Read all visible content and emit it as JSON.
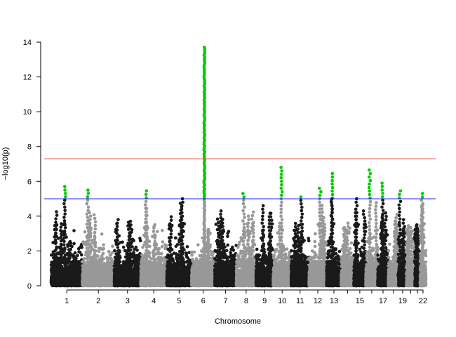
{
  "chart_data": {
    "type": "scatter",
    "subtype": "manhattan",
    "title": "",
    "xlabel": "Chromosome",
    "ylabel": "−log10(p)",
    "ylim": [
      0,
      14
    ],
    "y_ticks": [
      0,
      2,
      4,
      6,
      8,
      10,
      12,
      14
    ],
    "x_tick_labels": [
      "1",
      "2",
      "3",
      "4",
      "5",
      "6",
      "7",
      "8",
      "9",
      "10",
      "11",
      "12",
      "13",
      "15",
      "17",
      "19",
      "22"
    ],
    "chromosomes": [
      {
        "chr": "1",
        "span": 9.4,
        "color": "#1a1a1a",
        "max": 5.7
      },
      {
        "chr": "2",
        "span": 9.6,
        "color": "#989898",
        "max": 5.5
      },
      {
        "chr": "3",
        "span": 8.0,
        "color": "#1a1a1a",
        "max": 3.8
      },
      {
        "chr": "4",
        "span": 7.8,
        "color": "#989898",
        "max": 5.45
      },
      {
        "chr": "5",
        "span": 7.5,
        "color": "#1a1a1a",
        "max": 5.0
      },
      {
        "chr": "6",
        "span": 7.0,
        "color": "#989898",
        "max": 13.7
      },
      {
        "chr": "7",
        "span": 6.5,
        "color": "#1a1a1a",
        "max": 4.3
      },
      {
        "chr": "8",
        "span": 5.9,
        "color": "#989898",
        "max": 5.3
      },
      {
        "chr": "9",
        "span": 5.2,
        "color": "#1a1a1a",
        "max": 4.6
      },
      {
        "chr": "10",
        "span": 5.4,
        "color": "#989898",
        "max": 6.8
      },
      {
        "chr": "11",
        "span": 5.4,
        "color": "#1a1a1a",
        "max": 5.1
      },
      {
        "chr": "12",
        "span": 5.3,
        "color": "#989898",
        "max": 5.6
      },
      {
        "chr": "13",
        "span": 4.4,
        "color": "#1a1a1a",
        "max": 6.45
      },
      {
        "chr": "14",
        "span": 3.8,
        "color": "#989898",
        "max": 3.6
      },
      {
        "chr": "15",
        "span": 3.6,
        "color": "#1a1a1a",
        "max": 5.0
      },
      {
        "chr": "16",
        "span": 3.6,
        "color": "#989898",
        "max": 6.65
      },
      {
        "chr": "17",
        "span": 3.2,
        "color": "#1a1a1a",
        "max": 5.9
      },
      {
        "chr": "18",
        "span": 3.1,
        "color": "#989898",
        "max": 4.1
      },
      {
        "chr": "19",
        "span": 2.4,
        "color": "#1a1a1a",
        "max": 5.45
      },
      {
        "chr": "20",
        "span": 2.5,
        "color": "#989898",
        "max": 3.3
      },
      {
        "chr": "21",
        "span": 1.6,
        "color": "#1a1a1a",
        "max": 3.5
      },
      {
        "chr": "22",
        "span": 1.7,
        "color": "#989898",
        "max": 5.3
      }
    ],
    "thresholds": [
      {
        "value": 7.3,
        "color": "#e74c3c"
      },
      {
        "value": 5.0,
        "color": "#0000ff"
      }
    ],
    "highlight_color": "#00cc00",
    "grid": false,
    "legend": "none"
  }
}
